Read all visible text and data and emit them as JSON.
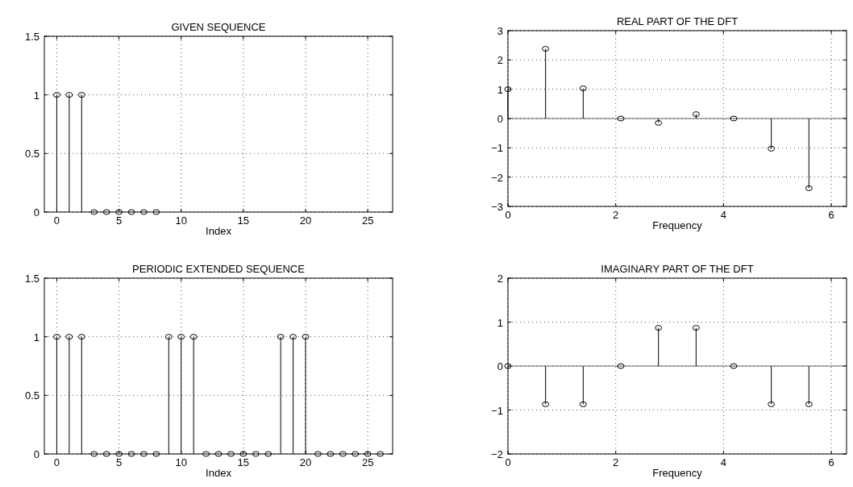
{
  "chart_data": [
    {
      "type": "lollipop",
      "title": "GIVEN SEQUENCE",
      "xlabel": "Index",
      "x": [
        0,
        1,
        2,
        3,
        4,
        5,
        6,
        7,
        8
      ],
      "values": [
        1,
        1,
        1,
        0,
        0,
        0,
        0,
        0,
        0
      ],
      "color": "#000000",
      "xlim": [
        -1,
        27
      ],
      "xticks": [
        0,
        5,
        10,
        15,
        20,
        25
      ],
      "ylim": [
        0,
        1.5
      ],
      "yticks": [
        0,
        0.5,
        1,
        1.5
      ],
      "grid": true,
      "marker": "circle"
    },
    {
      "type": "lollipop",
      "title": "REAL PART OF THE DFT",
      "xlabel": "Frequency",
      "x": [
        0,
        0.698,
        1.396,
        2.094,
        2.793,
        3.491,
        4.189,
        4.887,
        5.585
      ],
      "values": [
        1,
        2.38,
        1.03,
        0,
        -0.15,
        0.15,
        0,
        -1.03,
        -2.38
      ],
      "color": "#000000",
      "xlim": [
        0,
        6.283
      ],
      "xticks": [
        0,
        2,
        4,
        6
      ],
      "ylim": [
        -3,
        3
      ],
      "yticks": [
        {
          "value": -3,
          "label": "−3"
        },
        {
          "value": -2,
          "label": "−2"
        },
        {
          "value": -1,
          "label": "−1"
        },
        0,
        1,
        2,
        3
      ],
      "grid": true,
      "marker": "circle",
      "ref_lines": [
        {
          "axis": "y",
          "value": 0
        }
      ]
    },
    {
      "type": "lollipop",
      "title": "PERIODIC EXTENDED SEQUENCE",
      "xlabel": "Index",
      "x": [
        0,
        1,
        2,
        3,
        4,
        5,
        6,
        7,
        8,
        9,
        10,
        11,
        12,
        13,
        14,
        15,
        16,
        17,
        18,
        19,
        20,
        21,
        22,
        23,
        24,
        25,
        26
      ],
      "values": [
        1,
        1,
        1,
        0,
        0,
        0,
        0,
        0,
        0,
        1,
        1,
        1,
        0,
        0,
        0,
        0,
        0,
        0,
        1,
        1,
        1,
        0,
        0,
        0,
        0,
        0,
        0
      ],
      "color": "#000000",
      "xlim": [
        -1,
        27
      ],
      "xticks": [
        0,
        5,
        10,
        15,
        20,
        25
      ],
      "ylim": [
        0,
        1.5
      ],
      "yticks": [
        0,
        0.5,
        1,
        1.5
      ],
      "grid": true,
      "marker": "circle"
    },
    {
      "type": "lollipop",
      "title": "IMAGINARY PART OF THE DFT",
      "xlabel": "Frequency",
      "x": [
        0,
        0.698,
        1.396,
        2.094,
        2.793,
        3.491,
        4.189,
        4.887,
        5.585
      ],
      "values": [
        0,
        -0.87,
        -0.87,
        0,
        0.87,
        0.87,
        0,
        -0.87,
        -0.87
      ],
      "color": "#000000",
      "xlim": [
        0,
        6.283
      ],
      "xticks": [
        0,
        2,
        4,
        6
      ],
      "ylim": [
        -2,
        2
      ],
      "yticks": [
        {
          "value": -2,
          "label": "−2"
        },
        {
          "value": -1,
          "label": "−1"
        },
        0,
        1,
        2
      ],
      "grid": true,
      "marker": "circle",
      "ref_lines": [
        {
          "axis": "y",
          "value": 0
        }
      ]
    }
  ]
}
